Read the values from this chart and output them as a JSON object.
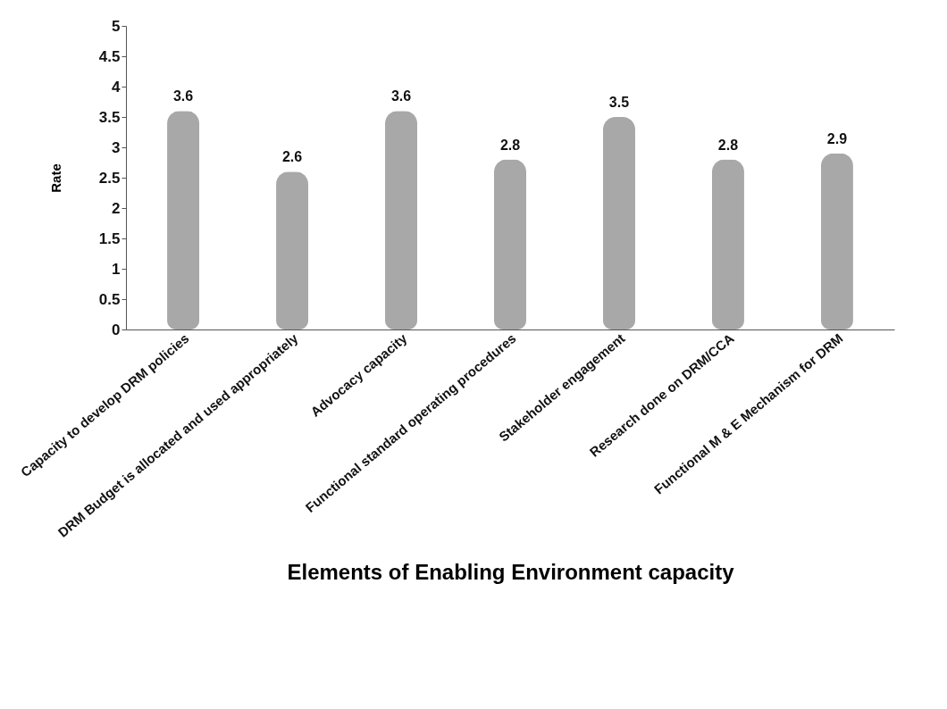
{
  "chart_data": {
    "type": "bar",
    "xlabel": "Elements of Enabling Environment capacity",
    "ylabel": "Rate",
    "categories": [
      "Capacity to develop DRM policies",
      "DRM Budget is allocated and used appropriately",
      "Advocacy capacity",
      "Functional standard operating procedures",
      "Stakeholder engagement",
      "Research done on DRM/CCA",
      "Functional M & E  Mechanism for DRM"
    ],
    "values": [
      3.6,
      2.6,
      3.6,
      2.8,
      3.5,
      2.8,
      2.9
    ],
    "color": "#a8a8a8",
    "ylim": [
      0,
      5
    ],
    "yticks": [
      0,
      0.5,
      1,
      1.5,
      2,
      2.5,
      3,
      3.5,
      4,
      4.5,
      5
    ],
    "data_labels": true,
    "grid": false,
    "legend": false
  }
}
